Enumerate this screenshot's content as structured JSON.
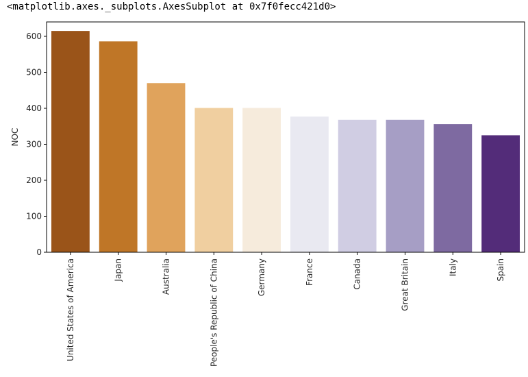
{
  "output_repr": "<matplotlib.axes._subplots.AxesSubplot at 0x7f0fecc421d0>",
  "chart_data": {
    "type": "bar",
    "categories": [
      "United States of America",
      "Japan",
      "Australia",
      "People's Republic of China",
      "Germany",
      "France",
      "Canada",
      "Great Britain",
      "Italy",
      "Spain"
    ],
    "values": [
      615,
      586,
      470,
      401,
      401,
      377,
      368,
      368,
      356,
      325
    ],
    "colors": [
      "#9a5419",
      "#bf7627",
      "#e0a35c",
      "#f0cfa0",
      "#f6ebdc",
      "#e9e9f1",
      "#d0cde3",
      "#a69ec5",
      "#7e6aa1",
      "#532c79"
    ],
    "title": "",
    "xlabel": "",
    "ylabel": "NOC",
    "ylim": [
      0,
      640
    ],
    "yticks": [
      0,
      100,
      200,
      300,
      400,
      500,
      600
    ],
    "grid": false
  }
}
